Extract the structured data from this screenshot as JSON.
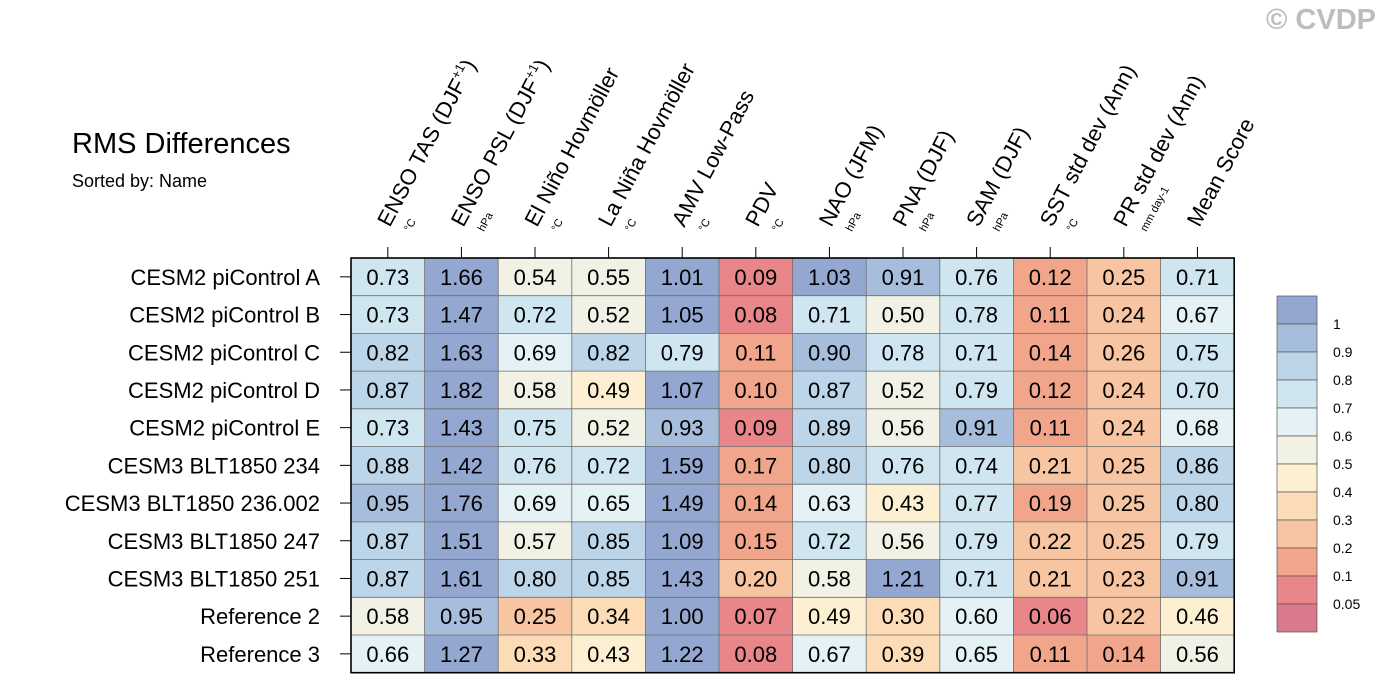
{
  "watermark": "© CVDP",
  "chart_data": {
    "type": "heatmap",
    "title": "RMS Differences",
    "subtitle": "Sorted by: Name",
    "columns": [
      {
        "label": "ENSO TAS (DJF",
        "sup": "+1",
        "tail": ")",
        "unit": "°C"
      },
      {
        "label": "ENSO PSL (DJF",
        "sup": "+1",
        "tail": ")",
        "unit": "hPa"
      },
      {
        "label": "El Niño Hovmöller",
        "sup": "",
        "tail": "",
        "unit": "°C"
      },
      {
        "label": "La Niña Hovmöller",
        "sup": "",
        "tail": "",
        "unit": "°C"
      },
      {
        "label": "AMV Low-Pass",
        "sup": "",
        "tail": "",
        "unit": "°C"
      },
      {
        "label": "PDV",
        "sup": "",
        "tail": "",
        "unit": "°C"
      },
      {
        "label": "NAO (JFM)",
        "sup": "",
        "tail": "",
        "unit": "hPa"
      },
      {
        "label": "PNA (DJF)",
        "sup": "",
        "tail": "",
        "unit": "hPa"
      },
      {
        "label": "SAM (DJF)",
        "sup": "",
        "tail": "",
        "unit": "hPa"
      },
      {
        "label": "SST std dev (Ann)",
        "sup": "",
        "tail": "",
        "unit": "°C"
      },
      {
        "label": "PR std dev (Ann)",
        "sup": "",
        "tail": "",
        "unit": "mm day-1"
      },
      {
        "label": "Mean Score",
        "sup": "",
        "tail": "",
        "unit": ""
      }
    ],
    "rows": [
      "CESM2 piControl A",
      "CESM2 piControl B",
      "CESM2 piControl C",
      "CESM2 piControl D",
      "CESM2 piControl E",
      "CESM3 BLT1850 234",
      "CESM3 BLT1850 236.002",
      "CESM3 BLT1850 247",
      "CESM3 BLT1850 251",
      "Reference 2",
      "Reference 3"
    ],
    "values": [
      [
        "0.73",
        "1.66",
        "0.54",
        "0.55",
        "1.01",
        "0.09",
        "1.03",
        "0.91",
        "0.76",
        "0.12",
        "0.25",
        "0.71"
      ],
      [
        "0.73",
        "1.47",
        "0.72",
        "0.52",
        "1.05",
        "0.08",
        "0.71",
        "0.50",
        "0.78",
        "0.11",
        "0.24",
        "0.67"
      ],
      [
        "0.82",
        "1.63",
        "0.69",
        "0.82",
        "0.79",
        "0.11",
        "0.90",
        "0.78",
        "0.71",
        "0.14",
        "0.26",
        "0.75"
      ],
      [
        "0.87",
        "1.82",
        "0.58",
        "0.49",
        "1.07",
        "0.10",
        "0.87",
        "0.52",
        "0.79",
        "0.12",
        "0.24",
        "0.70"
      ],
      [
        "0.73",
        "1.43",
        "0.75",
        "0.52",
        "0.93",
        "0.09",
        "0.89",
        "0.56",
        "0.91",
        "0.11",
        "0.24",
        "0.68"
      ],
      [
        "0.88",
        "1.42",
        "0.76",
        "0.72",
        "1.59",
        "0.17",
        "0.80",
        "0.76",
        "0.74",
        "0.21",
        "0.25",
        "0.86"
      ],
      [
        "0.95",
        "1.76",
        "0.69",
        "0.65",
        "1.49",
        "0.14",
        "0.63",
        "0.43",
        "0.77",
        "0.19",
        "0.25",
        "0.80"
      ],
      [
        "0.87",
        "1.51",
        "0.57",
        "0.85",
        "1.09",
        "0.15",
        "0.72",
        "0.56",
        "0.79",
        "0.22",
        "0.25",
        "0.79"
      ],
      [
        "0.87",
        "1.61",
        "0.80",
        "0.85",
        "1.43",
        "0.20",
        "0.58",
        "1.21",
        "0.71",
        "0.21",
        "0.23",
        "0.91"
      ],
      [
        "0.58",
        "0.95",
        "0.25",
        "0.34",
        "1.00",
        "0.07",
        "0.49",
        "0.30",
        "0.60",
        "0.06",
        "0.22",
        "0.46"
      ],
      [
        "0.66",
        "1.27",
        "0.33",
        "0.43",
        "1.22",
        "0.08",
        "0.67",
        "0.39",
        "0.65",
        "0.11",
        "0.14",
        "0.56"
      ]
    ],
    "colorbar": {
      "labels": [
        "1",
        "0.9",
        "0.8",
        "0.7",
        "0.6",
        "0.5",
        "0.4",
        "0.3",
        "0.2",
        "0.1",
        "0.05"
      ],
      "bin_colors": [
        "#94a7d1",
        "#a7bddc",
        "#bdd5e8",
        "#cfe5f0",
        "#e4f1f5",
        "#f1f1e6",
        "#fdf0d2",
        "#fbdcb6",
        "#f7c5a1",
        "#f1a68c",
        "#e8868a",
        "#d87a8c"
      ]
    }
  }
}
